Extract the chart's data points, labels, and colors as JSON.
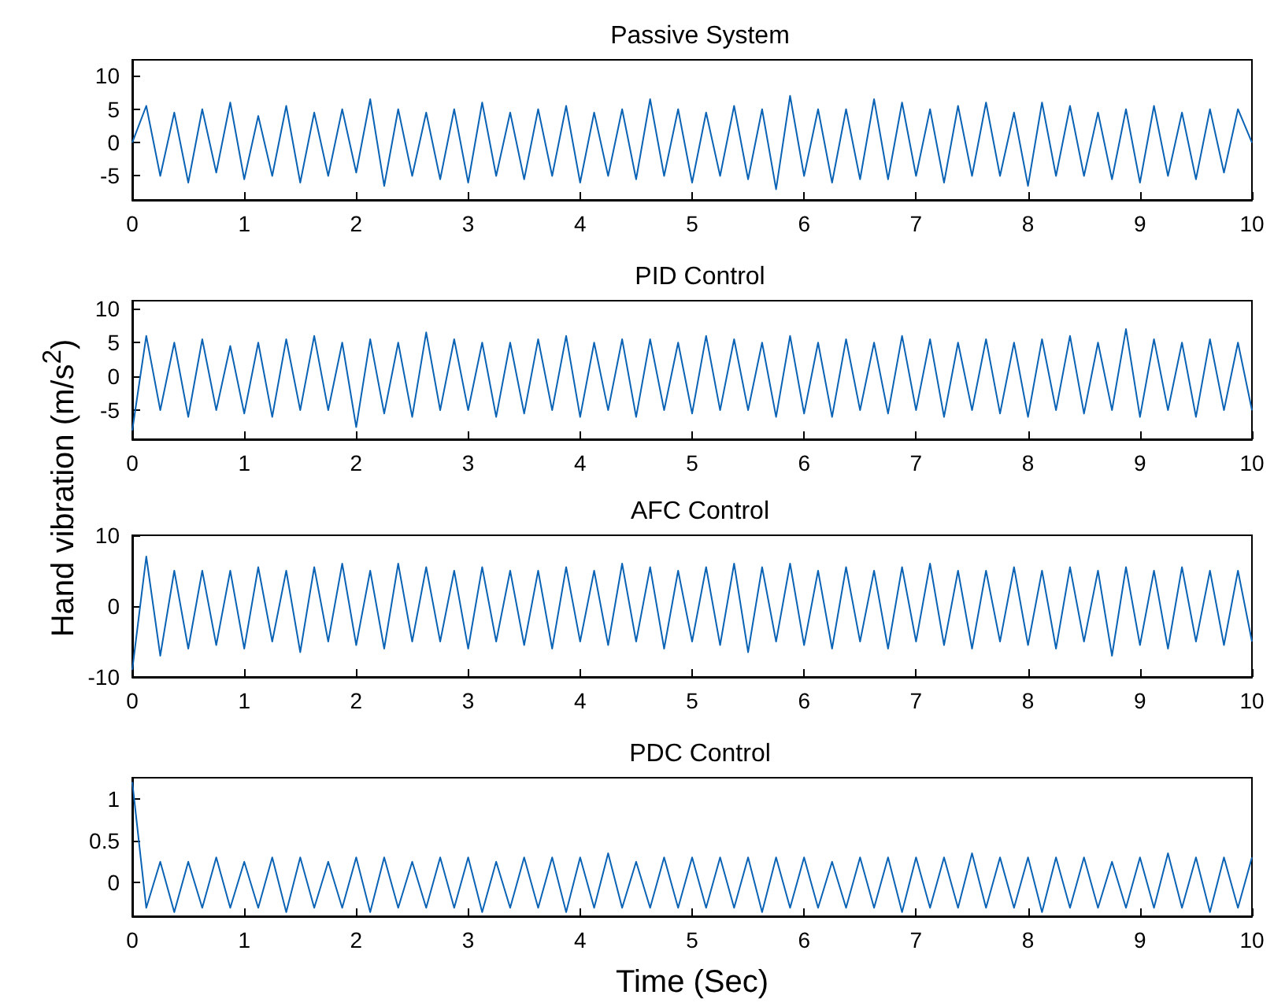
{
  "chart_data": [
    {
      "type": "line",
      "title": "Passive System",
      "xlim": [
        0,
        10
      ],
      "xticks": [
        0,
        1,
        2,
        3,
        4,
        5,
        6,
        7,
        8,
        9,
        10
      ],
      "ylim": [
        -8.6,
        12.4
      ],
      "yticks": [
        -5,
        0,
        5,
        10
      ],
      "grid": false,
      "x": [
        0,
        0.125,
        0.25,
        0.375,
        0.5,
        0.625,
        0.75,
        0.875,
        1,
        1.125,
        1.25,
        1.375,
        1.5,
        1.625,
        1.75,
        1.875,
        2,
        2.125,
        2.25,
        2.375,
        2.5,
        2.625,
        2.75,
        2.875,
        3,
        3.125,
        3.25,
        3.375,
        3.5,
        3.625,
        3.75,
        3.875,
        4,
        4.125,
        4.25,
        4.375,
        4.5,
        4.625,
        4.75,
        4.875,
        5,
        5.125,
        5.25,
        5.375,
        5.5,
        5.625,
        5.75,
        5.875,
        6,
        6.125,
        6.25,
        6.375,
        6.5,
        6.625,
        6.75,
        6.875,
        7,
        7.125,
        7.25,
        7.375,
        7.5,
        7.625,
        7.75,
        7.875,
        8,
        8.125,
        8.25,
        8.375,
        8.5,
        8.625,
        8.75,
        8.875,
        9,
        9.125,
        9.25,
        9.375,
        9.5,
        9.625,
        9.75,
        9.875,
        10
      ],
      "series": [
        {
          "color": "#0b63b5",
          "values": [
            0,
            5.5,
            -5,
            4.5,
            -6,
            5,
            -4.5,
            6,
            -5.5,
            4,
            -5,
            5.5,
            -6,
            4.5,
            -5,
            5,
            -4.5,
            6.5,
            -6.5,
            5,
            -5,
            4.5,
            -5.5,
            5,
            -6,
            6,
            -5,
            4.5,
            -5.5,
            5,
            -5,
            5.5,
            -6,
            4.5,
            -5,
            5,
            -5.5,
            6.5,
            -5,
            5,
            -6,
            4.5,
            -5,
            5.5,
            -5.5,
            5,
            -7,
            7,
            -5,
            5,
            -6,
            5,
            -5.5,
            6.5,
            -5.5,
            6,
            -5,
            5,
            -6,
            5.5,
            -5,
            6,
            -5,
            4.5,
            -6.5,
            6,
            -5,
            5.5,
            -5,
            4.5,
            -5.5,
            5,
            -6,
            5.5,
            -5,
            4.5,
            -5.5,
            5,
            -4.5,
            5,
            0
          ]
        }
      ]
    },
    {
      "type": "line",
      "title": "PID Control",
      "ylabel": "Hand vibration (m/s$^{2}$)",
      "xlim": [
        0,
        10
      ],
      "xticks": [
        0,
        1,
        2,
        3,
        4,
        5,
        6,
        7,
        8,
        9,
        10
      ],
      "ylim": [
        -9.3,
        11.2
      ],
      "yticks": [
        -5,
        0,
        5,
        10
      ],
      "grid": false,
      "x": [
        0,
        0.125,
        0.25,
        0.375,
        0.5,
        0.625,
        0.75,
        0.875,
        1,
        1.125,
        1.25,
        1.375,
        1.5,
        1.625,
        1.75,
        1.875,
        2,
        2.125,
        2.25,
        2.375,
        2.5,
        2.625,
        2.75,
        2.875,
        3,
        3.125,
        3.25,
        3.375,
        3.5,
        3.625,
        3.75,
        3.875,
        4,
        4.125,
        4.25,
        4.375,
        4.5,
        4.625,
        4.75,
        4.875,
        5,
        5.125,
        5.25,
        5.375,
        5.5,
        5.625,
        5.75,
        5.875,
        6,
        6.125,
        6.25,
        6.375,
        6.5,
        6.625,
        6.75,
        6.875,
        7,
        7.125,
        7.25,
        7.375,
        7.5,
        7.625,
        7.75,
        7.875,
        8,
        8.125,
        8.25,
        8.375,
        8.5,
        8.625,
        8.75,
        8.875,
        9,
        9.125,
        9.25,
        9.375,
        9.5,
        9.625,
        9.75,
        9.875,
        10
      ],
      "series": [
        {
          "color": "#0b63b5",
          "values": [
            -8,
            6,
            -5,
            5,
            -6,
            5.5,
            -5,
            4.5,
            -5.5,
            5,
            -6,
            5.5,
            -5,
            6,
            -5,
            5,
            -7.5,
            5.5,
            -5.5,
            5,
            -6,
            6.5,
            -5,
            5.5,
            -5,
            5,
            -6,
            5,
            -5.5,
            5.5,
            -5,
            6,
            -6,
            5,
            -5,
            5.5,
            -6,
            5.5,
            -5,
            5,
            -5.5,
            6,
            -5,
            5.5,
            -5,
            5,
            -6,
            6,
            -5.5,
            5,
            -6,
            5.5,
            -5,
            5,
            -5.5,
            6,
            -5,
            5.5,
            -6,
            5,
            -5,
            5.5,
            -5.5,
            5,
            -6,
            5.5,
            -5,
            6,
            -5.5,
            5,
            -5,
            7,
            -6,
            5.5,
            -5,
            5,
            -6,
            5.5,
            -5,
            5,
            -5
          ]
        }
      ]
    },
    {
      "type": "line",
      "title": "AFC Control",
      "xlim": [
        0,
        10
      ],
      "xticks": [
        0,
        1,
        2,
        3,
        4,
        5,
        6,
        7,
        8,
        9,
        10
      ],
      "ylim": [
        -10,
        10
      ],
      "yticks": [
        -10,
        0,
        10
      ],
      "grid": false,
      "x": [
        0,
        0.125,
        0.25,
        0.375,
        0.5,
        0.625,
        0.75,
        0.875,
        1,
        1.125,
        1.25,
        1.375,
        1.5,
        1.625,
        1.75,
        1.875,
        2,
        2.125,
        2.25,
        2.375,
        2.5,
        2.625,
        2.75,
        2.875,
        3,
        3.125,
        3.25,
        3.375,
        3.5,
        3.625,
        3.75,
        3.875,
        4,
        4.125,
        4.25,
        4.375,
        4.5,
        4.625,
        4.75,
        4.875,
        5,
        5.125,
        5.25,
        5.375,
        5.5,
        5.625,
        5.75,
        5.875,
        6,
        6.125,
        6.25,
        6.375,
        6.5,
        6.625,
        6.75,
        6.875,
        7,
        7.125,
        7.25,
        7.375,
        7.5,
        7.625,
        7.75,
        7.875,
        8,
        8.125,
        8.25,
        8.375,
        8.5,
        8.625,
        8.75,
        8.875,
        9,
        9.125,
        9.25,
        9.375,
        9.5,
        9.625,
        9.75,
        9.875,
        10
      ],
      "series": [
        {
          "color": "#0b63b5",
          "values": [
            -9,
            7,
            -7,
            5,
            -6,
            5,
            -5.5,
            5,
            -6,
            5.5,
            -5,
            5,
            -6.5,
            5.5,
            -5,
            6,
            -5.5,
            5,
            -6,
            6,
            -5,
            5.5,
            -5,
            5,
            -6,
            5.5,
            -5,
            5,
            -5.5,
            5,
            -6,
            5.5,
            -5,
            5,
            -5.5,
            6,
            -5,
            5.5,
            -6,
            5,
            -5,
            5.5,
            -5.5,
            6,
            -6.5,
            5.5,
            -5,
            6,
            -5.5,
            5,
            -6,
            5.5,
            -5,
            5,
            -6,
            5.5,
            -5,
            6,
            -5.5,
            5,
            -6,
            5,
            -5,
            5.5,
            -5.5,
            5,
            -6,
            5.5,
            -5,
            5,
            -7,
            5.5,
            -5.5,
            5,
            -6,
            5.5,
            -5,
            5,
            -5.5,
            5,
            -5
          ]
        }
      ]
    },
    {
      "type": "line",
      "title": "PDC Control",
      "xlabel": "Time (Sec)",
      "xlim": [
        0,
        10
      ],
      "xticks": [
        0,
        1,
        2,
        3,
        4,
        5,
        6,
        7,
        8,
        9,
        10
      ],
      "ylim": [
        -0.4,
        1.25
      ],
      "yticks": [
        0,
        0.5,
        1
      ],
      "grid": false,
      "x": [
        0,
        0.125,
        0.25,
        0.375,
        0.5,
        0.625,
        0.75,
        0.875,
        1,
        1.125,
        1.25,
        1.375,
        1.5,
        1.625,
        1.75,
        1.875,
        2,
        2.125,
        2.25,
        2.375,
        2.5,
        2.625,
        2.75,
        2.875,
        3,
        3.125,
        3.25,
        3.375,
        3.5,
        3.625,
        3.75,
        3.875,
        4,
        4.125,
        4.25,
        4.375,
        4.5,
        4.625,
        4.75,
        4.875,
        5,
        5.125,
        5.25,
        5.375,
        5.5,
        5.625,
        5.75,
        5.875,
        6,
        6.125,
        6.25,
        6.375,
        6.5,
        6.625,
        6.75,
        6.875,
        7,
        7.125,
        7.25,
        7.375,
        7.5,
        7.625,
        7.75,
        7.875,
        8,
        8.125,
        8.25,
        8.375,
        8.5,
        8.625,
        8.75,
        8.875,
        9,
        9.125,
        9.25,
        9.375,
        9.5,
        9.625,
        9.75,
        9.875,
        10
      ],
      "series": [
        {
          "color": "#0b63b5",
          "values": [
            1.2,
            -0.3,
            0.25,
            -0.35,
            0.25,
            -0.3,
            0.3,
            -0.3,
            0.25,
            -0.3,
            0.3,
            -0.35,
            0.3,
            -0.3,
            0.25,
            -0.3,
            0.3,
            -0.35,
            0.3,
            -0.3,
            0.25,
            -0.3,
            0.3,
            -0.3,
            0.3,
            -0.35,
            0.25,
            -0.3,
            0.3,
            -0.3,
            0.3,
            -0.35,
            0.3,
            -0.3,
            0.35,
            -0.3,
            0.25,
            -0.3,
            0.3,
            -0.3,
            0.3,
            -0.3,
            0.3,
            -0.3,
            0.3,
            -0.35,
            0.3,
            -0.3,
            0.3,
            -0.3,
            0.25,
            -0.3,
            0.3,
            -0.3,
            0.3,
            -0.35,
            0.3,
            -0.3,
            0.3,
            -0.3,
            0.35,
            -0.3,
            0.3,
            -0.3,
            0.3,
            -0.35,
            0.3,
            -0.3,
            0.3,
            -0.3,
            0.25,
            -0.3,
            0.3,
            -0.3,
            0.35,
            -0.3,
            0.3,
            -0.35,
            0.3,
            -0.3,
            0.3
          ]
        }
      ]
    }
  ]
}
